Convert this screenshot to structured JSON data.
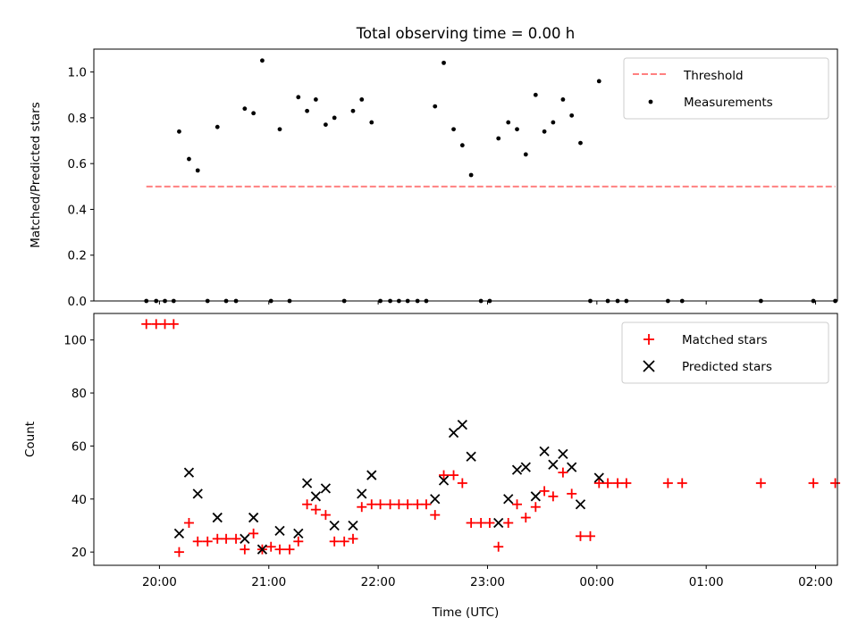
{
  "title": "Total observing time = 0.00 h",
  "chart_data": [
    {
      "type": "scatter",
      "ylabel": "Matched/Predicted stars",
      "xlim_hours": [
        19.4,
        26.2
      ],
      "ylim": [
        0,
        1.1
      ],
      "yticks": [
        0.0,
        0.2,
        0.4,
        0.6,
        0.8,
        1.0
      ],
      "ytick_labels": [
        "0.0",
        "0.2",
        "0.4",
        "0.6",
        "0.8",
        "1.0"
      ],
      "grid": false,
      "legend_position": "top-right",
      "threshold": {
        "name": "Threshold",
        "y": 0.5,
        "x_start": 19.88,
        "x_end": 26.18,
        "color": "#ff8080",
        "style": "dashed"
      },
      "measurements": {
        "name": "Measurements",
        "color": "#000000",
        "x": [
          19.88,
          19.97,
          20.05,
          20.13,
          20.18,
          20.27,
          20.35,
          20.44,
          20.53,
          20.61,
          20.7,
          20.78,
          20.86,
          20.94,
          21.02,
          21.1,
          21.19,
          21.27,
          21.35,
          21.43,
          21.52,
          21.6,
          21.69,
          21.77,
          21.85,
          21.94,
          22.02,
          22.11,
          22.19,
          22.27,
          22.36,
          22.44,
          22.52,
          22.6,
          22.69,
          22.77,
          22.85,
          22.94,
          23.02,
          23.1,
          23.19,
          23.27,
          23.35,
          23.44,
          23.52,
          23.6,
          23.69,
          23.77,
          23.85,
          23.94,
          24.02,
          24.1,
          24.19,
          24.27,
          24.65,
          24.78,
          25.5,
          25.98,
          26.18
        ],
        "y": [
          0.0,
          0.0,
          0.0,
          0.0,
          0.74,
          0.62,
          0.57,
          0.0,
          0.76,
          0.0,
          0.0,
          0.84,
          0.82,
          1.05,
          0.0,
          0.75,
          0.0,
          0.89,
          0.83,
          0.88,
          0.77,
          0.8,
          0.0,
          0.83,
          0.88,
          0.78,
          0.0,
          0.0,
          0.0,
          0.0,
          0.0,
          0.0,
          0.85,
          1.04,
          0.75,
          0.68,
          0.55,
          0.0,
          0.0,
          0.71,
          0.78,
          0.75,
          0.64,
          0.9,
          0.74,
          0.78,
          0.88,
          0.81,
          0.69,
          0.0,
          0.96,
          0.0,
          0.0,
          0.0,
          0.0,
          0.0,
          0.0,
          0.0,
          0.0
        ]
      }
    },
    {
      "type": "scatter",
      "xlabel": "Time (UTC)",
      "ylabel": "Count",
      "xlim_hours": [
        19.4,
        26.2
      ],
      "xticks_hours": [
        20,
        21,
        22,
        23,
        24,
        25,
        26
      ],
      "xtick_labels": [
        "20:00",
        "21:00",
        "22:00",
        "23:00",
        "00:00",
        "01:00",
        "02:00"
      ],
      "ylim": [
        15,
        110
      ],
      "yticks": [
        20,
        40,
        60,
        80,
        100
      ],
      "ytick_labels": [
        "20",
        "40",
        "60",
        "80",
        "100"
      ],
      "grid": false,
      "legend_position": "top-right",
      "series": [
        {
          "name": "Matched stars",
          "marker": "plus",
          "color": "#ff0000",
          "x": [
            19.88,
            19.97,
            20.05,
            20.13,
            20.18,
            20.27,
            20.35,
            20.44,
            20.53,
            20.61,
            20.7,
            20.78,
            20.86,
            20.94,
            21.02,
            21.1,
            21.19,
            21.27,
            21.35,
            21.43,
            21.52,
            21.6,
            21.69,
            21.77,
            21.85,
            21.94,
            22.02,
            22.11,
            22.19,
            22.27,
            22.36,
            22.44,
            22.52,
            22.6,
            22.69,
            22.77,
            22.85,
            22.94,
            23.02,
            23.1,
            23.19,
            23.27,
            23.35,
            23.44,
            23.52,
            23.6,
            23.69,
            23.77,
            23.85,
            23.94,
            24.02,
            24.1,
            24.19,
            24.27,
            24.65,
            24.78,
            25.5,
            25.98,
            26.18
          ],
          "y": [
            106,
            106,
            106,
            106,
            20,
            31,
            24,
            24,
            25,
            25,
            25,
            21,
            27,
            21,
            22,
            21,
            21,
            24,
            38,
            36,
            34,
            24,
            24,
            25,
            37,
            38,
            38,
            38,
            38,
            38,
            38,
            38,
            34,
            49,
            49,
            46,
            31,
            31,
            31,
            22,
            31,
            38,
            33,
            37,
            43,
            41,
            50,
            42,
            26,
            26,
            46,
            46,
            46,
            46,
            46,
            46,
            46,
            46,
            46
          ]
        },
        {
          "name": "Predicted stars",
          "marker": "x",
          "color": "#000000",
          "x": [
            20.18,
            20.27,
            20.35,
            20.53,
            20.78,
            20.86,
            20.94,
            21.1,
            21.27,
            21.35,
            21.43,
            21.52,
            21.6,
            21.77,
            21.85,
            21.94,
            22.52,
            22.6,
            22.69,
            22.77,
            22.85,
            23.1,
            23.19,
            23.27,
            23.35,
            23.44,
            23.52,
            23.6,
            23.69,
            23.77,
            23.85,
            24.02
          ],
          "y": [
            27,
            50,
            42,
            33,
            25,
            33,
            21,
            28,
            27,
            46,
            41,
            44,
            30,
            30,
            42,
            49,
            40,
            47,
            65,
            68,
            56,
            31,
            40,
            51,
            52,
            41,
            58,
            53,
            57,
            52,
            38,
            48
          ]
        }
      ]
    }
  ]
}
